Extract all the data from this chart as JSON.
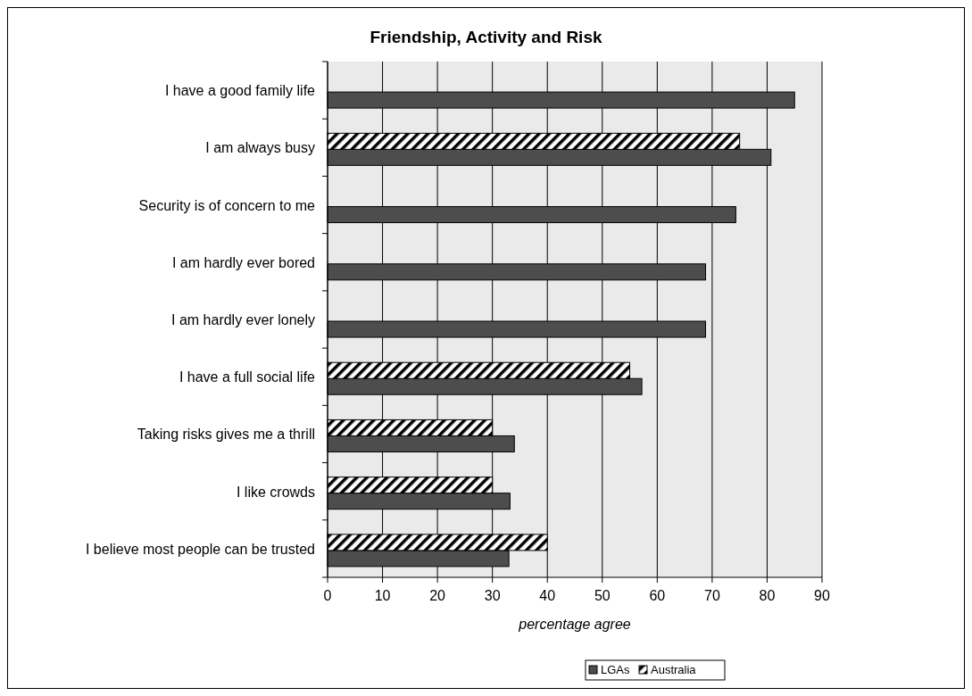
{
  "chart_data": {
    "type": "bar",
    "orientation": "horizontal",
    "title": "Friendship, Activity and Risk",
    "xlabel": "percentage agree",
    "categories": [
      "I have a good family life",
      "I am always busy",
      "Security is of concern to me",
      "I am hardly ever bored",
      "I am hardly ever lonely",
      "I have a full social life",
      "Taking risks gives me a thrill",
      "I like crowds",
      "I believe most people can be trusted"
    ],
    "series": [
      {
        "name": "LGAs",
        "color": "#4d4d4d",
        "values": [
          85,
          80.7,
          74.3,
          68.8,
          68.8,
          57.2,
          34,
          33.2,
          33
        ]
      },
      {
        "name": "Australia",
        "color": "#000000",
        "values": [
          null,
          75,
          null,
          null,
          null,
          55,
          30,
          30,
          40
        ]
      }
    ],
    "xlim": [
      0,
      90
    ],
    "xticks": [
      0,
      10,
      20,
      30,
      40,
      50,
      60,
      70,
      80,
      90
    ],
    "grid": "x",
    "legend": "bottom"
  }
}
